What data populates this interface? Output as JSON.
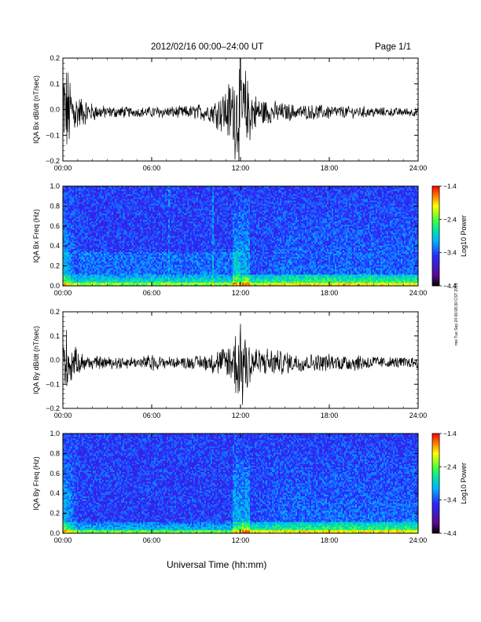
{
  "header": {
    "title": "2012/02/16  00:00–24:00 UT",
    "page": "Page 1/1"
  },
  "footer": {
    "xlabel": "Universal Time (hh:mm)",
    "side_note": "mei Tue Sep 24 06:08:30 CST 2019"
  },
  "colors": {
    "trace": "#000000",
    "colormap": [
      "#000000",
      "#5a0a8c",
      "#2a2aff",
      "#00b4ff",
      "#00e0b0",
      "#40ff40",
      "#ffff00",
      "#ff8000",
      "#ff0000"
    ]
  },
  "chart_data": [
    {
      "type": "line",
      "ylabel": "IQA Bx dB/dt (nT/sec)",
      "ylim": [
        -0.2,
        0.2
      ],
      "yticks": [
        "0.2",
        "0.1",
        "0.0",
        "−0.1",
        "−0.2"
      ],
      "xticks": [
        "00:00",
        "06:00",
        "12:00",
        "18:00",
        "24:00"
      ],
      "x": [
        0,
        0.5,
        1,
        2,
        3,
        4,
        5,
        6,
        7,
        8,
        9,
        10,
        11,
        11.5,
        12,
        12.5,
        13,
        14,
        15,
        16,
        17,
        18,
        19,
        20,
        21,
        22,
        23,
        24
      ],
      "envelope": [
        0.2,
        0.12,
        0.06,
        0.03,
        0.02,
        0.02,
        0.015,
        0.02,
        0.02,
        0.02,
        0.025,
        0.035,
        0.08,
        0.14,
        0.2,
        0.12,
        0.06,
        0.04,
        0.03,
        0.025,
        0.025,
        0.025,
        0.02,
        0.02,
        0.018,
        0.015,
        0.015,
        0.015
      ]
    },
    {
      "type": "heatmap",
      "ylabel": "IQA Bx Freq (Hz)",
      "ylim": [
        0,
        1.0
      ],
      "yticks": [
        "1.0",
        "0.8",
        "0.6",
        "0.4",
        "0.2",
        "0.0"
      ],
      "xticks": [
        "00:00",
        "06:00",
        "12:00",
        "18:00",
        "24:00"
      ],
      "colorbar": {
        "label": "Log10 Power",
        "range": [
          -4.4,
          -1.4
        ],
        "ticks": [
          "−1.4",
          "−2.4",
          "−3.4",
          "−4.4"
        ]
      }
    },
    {
      "type": "line",
      "ylabel": "IQA By dB/dt (nT/sec)",
      "ylim": [
        -0.2,
        0.2
      ],
      "yticks": [
        "0.2",
        "0.1",
        "0.0",
        "−0.1",
        "−0.2"
      ],
      "xticks": [
        "00:00",
        "06:00",
        "12:00",
        "18:00",
        "24:00"
      ],
      "x": [
        0,
        0.5,
        1,
        2,
        3,
        4,
        5,
        6,
        7,
        8,
        9,
        10,
        11,
        11.5,
        12,
        12.5,
        13,
        14,
        15,
        16,
        17,
        18,
        19,
        20,
        21,
        22,
        23,
        24
      ],
      "envelope": [
        0.15,
        0.08,
        0.04,
        0.025,
        0.02,
        0.025,
        0.02,
        0.03,
        0.02,
        0.02,
        0.025,
        0.035,
        0.06,
        0.1,
        0.2,
        0.1,
        0.06,
        0.05,
        0.04,
        0.035,
        0.03,
        0.03,
        0.03,
        0.03,
        0.025,
        0.02,
        0.02,
        0.02
      ]
    },
    {
      "type": "heatmap",
      "ylabel": "IQA By Freq (Hz)",
      "ylim": [
        0,
        1.0
      ],
      "yticks": [
        "1.0",
        "0.8",
        "0.6",
        "0.4",
        "0.2",
        "0.0"
      ],
      "xticks": [
        "00:00",
        "06:00",
        "12:00",
        "18:00",
        "24:00"
      ],
      "colorbar": {
        "label": "Log10 Power",
        "range": [
          -4.4,
          -1.4
        ],
        "ticks": [
          "−1.4",
          "−2.4",
          "−3.4",
          "−4.4"
        ]
      }
    }
  ]
}
